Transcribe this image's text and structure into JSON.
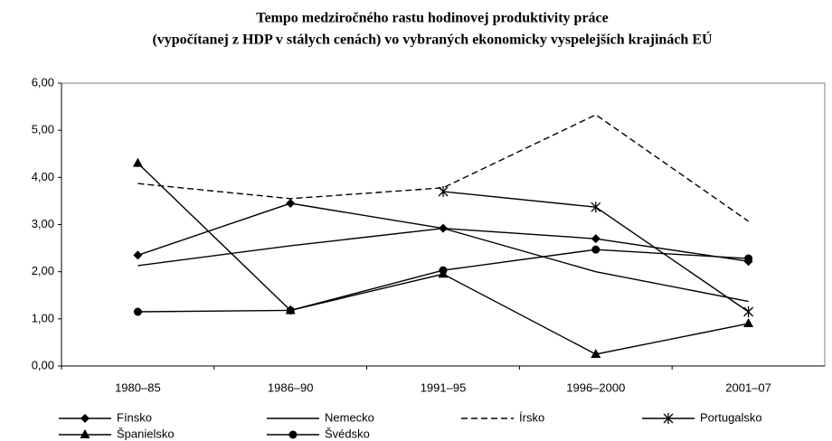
{
  "chart_data": {
    "type": "line",
    "title": "Tempo medziročného rastu hodinovej produktivity práce",
    "subtitle": "(vypočítanej z HDP v stálych cenách) vo vybraných ekonomicky vyspelejších krajinách EÚ",
    "categories": [
      "1980–85",
      "1986–90",
      "1991–95",
      "1996–2000",
      "2001–07"
    ],
    "series": [
      {
        "name": "Fínsko",
        "color": "#000000",
        "marker": "diamond",
        "dash": "solid",
        "values": [
          2.35,
          3.45,
          2.92,
          2.7,
          2.22
        ]
      },
      {
        "name": "Nemecko",
        "color": "#000000",
        "marker": "none",
        "dash": "solid",
        "values": [
          2.13,
          2.55,
          2.92,
          2.0,
          1.37
        ]
      },
      {
        "name": "Írsko",
        "color": "#000000",
        "marker": "none",
        "dash": "dashed",
        "values": [
          3.87,
          3.55,
          3.78,
          5.33,
          3.07
        ]
      },
      {
        "name": "Portugalsko",
        "color": "#000000",
        "marker": "star",
        "dash": "solid",
        "values": [
          null,
          null,
          3.7,
          3.37,
          1.15
        ]
      },
      {
        "name": "Španielsko",
        "color": "#000000",
        "marker": "triangle",
        "dash": "solid",
        "values": [
          4.3,
          1.18,
          1.95,
          0.25,
          0.9
        ]
      },
      {
        "name": "Švédsko",
        "color": "#000000",
        "marker": "circle",
        "dash": "solid",
        "values": [
          1.15,
          1.18,
          2.03,
          2.47,
          2.28
        ]
      }
    ],
    "ylim": [
      0,
      6
    ],
    "yticks": [
      {
        "value": 0,
        "label": "0,00"
      },
      {
        "value": 1,
        "label": "1,00"
      },
      {
        "value": 2,
        "label": "2,00"
      },
      {
        "value": 3,
        "label": "3,00"
      },
      {
        "value": 4,
        "label": "4,00"
      },
      {
        "value": 5,
        "label": "5,00"
      },
      {
        "value": 6,
        "label": "6,00"
      }
    ],
    "grid": false,
    "legend": "bottom"
  }
}
